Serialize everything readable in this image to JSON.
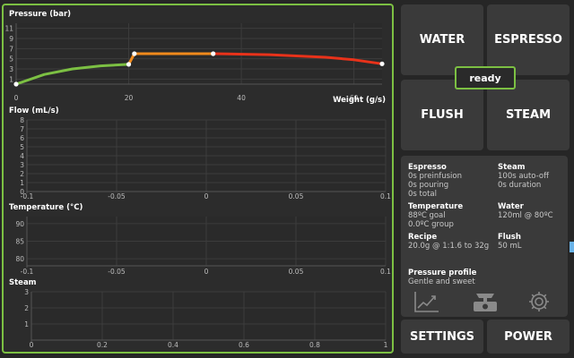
{
  "charts": {
    "pressure": {
      "title": "Pressure (bar)",
      "xlabel": "Weight (g/s)",
      "y_ticks": [
        "11",
        "9",
        "7",
        "5",
        "3",
        "1"
      ],
      "x_ticks": [
        "0",
        "20",
        "40",
        "60"
      ]
    },
    "flow": {
      "title": "Flow (mL/s)",
      "y_ticks": [
        "8",
        "7",
        "6",
        "5",
        "4",
        "3",
        "2",
        "1",
        "0"
      ],
      "x_ticks": [
        "-0.1",
        "-0.05",
        "0",
        "0.05",
        "0.1"
      ]
    },
    "temperature": {
      "title": "Temperature (°C)",
      "y_ticks": [
        "90",
        "85",
        "80"
      ],
      "x_ticks": [
        "-0.1",
        "-0.05",
        "0",
        "0.05",
        "0.1"
      ]
    },
    "steam": {
      "title": "Steam",
      "y_ticks": [
        "3",
        "2",
        "1"
      ],
      "x_ticks": [
        "0",
        "0.2",
        "0.4",
        "0.6",
        "0.8",
        "1"
      ]
    }
  },
  "chart_data": [
    {
      "type": "line",
      "title": "Pressure (bar)",
      "xlabel": "Weight (g/s)",
      "ylabel": "",
      "xlim": [
        0,
        65
      ],
      "ylim": [
        0,
        12
      ],
      "series": [
        {
          "color": "#7cc043",
          "x": [
            0,
            5,
            10,
            15,
            20
          ],
          "y": [
            0,
            1.9,
            3.0,
            3.6,
            3.9
          ]
        },
        {
          "color": "#f08a1c",
          "x": [
            20,
            21,
            35
          ],
          "y": [
            3.9,
            6.0,
            6.0
          ]
        },
        {
          "color": "#e8321a",
          "x": [
            35,
            45,
            55,
            60,
            65
          ],
          "y": [
            6.0,
            5.8,
            5.3,
            4.8,
            4.0
          ]
        }
      ],
      "markers": {
        "x": [
          0,
          20,
          21,
          35,
          65
        ],
        "y": [
          0,
          3.9,
          6.0,
          6.0,
          4.0
        ]
      }
    },
    {
      "type": "line",
      "title": "Flow (mL/s)",
      "xlim": [
        -0.1,
        0.1
      ],
      "ylim": [
        0,
        8
      ],
      "series": []
    },
    {
      "type": "line",
      "title": "Temperature (°C)",
      "xlim": [
        -0.1,
        0.1
      ],
      "ylim": [
        78,
        92
      ],
      "series": []
    },
    {
      "type": "line",
      "title": "Steam",
      "xlim": [
        0,
        1
      ],
      "ylim": [
        0,
        3
      ],
      "series": []
    }
  ],
  "buttons": {
    "water": "WATER",
    "espresso": "ESPRESSO",
    "flush": "FLUSH",
    "steam": "STEAM",
    "settings": "SETTINGS",
    "power": "POWER"
  },
  "status": "ready",
  "info": {
    "espresso": {
      "title": "Espresso",
      "lines": [
        "0s preinfusion",
        "0s pouring",
        "0s total"
      ]
    },
    "steam": {
      "title": "Steam",
      "lines": [
        "100s auto-off",
        "0s duration"
      ]
    },
    "temperature": {
      "title": "Temperature",
      "lines": [
        "88ºC goal",
        "0.0ºC group"
      ]
    },
    "water": {
      "title": "Water",
      "lines": [
        "120ml @ 80ºC"
      ]
    },
    "recipe": {
      "title": "Recipe",
      "lines": [
        "20.0g @ 1:1.6 to 32g"
      ]
    },
    "flush": {
      "title": "Flush",
      "lines": [
        "50 mL"
      ]
    },
    "profile": {
      "title": "Pressure profile",
      "value": "Gentle and sweet"
    }
  },
  "icons": [
    "chart-icon",
    "scale-icon",
    "gear-icon"
  ]
}
